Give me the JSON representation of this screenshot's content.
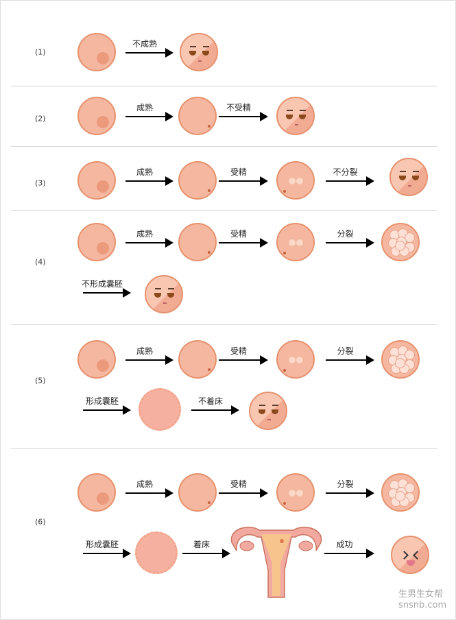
{
  "rows": [
    {
      "num": "(1)",
      "labels": [
        "不成熟"
      ]
    },
    {
      "num": "(2)",
      "labels": [
        "成熟",
        "不受精"
      ]
    },
    {
      "num": "(3)",
      "labels": [
        "成熟",
        "受精",
        "不分裂"
      ]
    },
    {
      "num": "(4)",
      "labels": [
        "成熟",
        "受精",
        "分裂",
        "不形成囊胚"
      ]
    },
    {
      "num": "(5)",
      "labels": [
        "成熟",
        "受精",
        "分裂",
        "形成囊胚",
        "不着床"
      ]
    },
    {
      "num": "(6)",
      "labels": [
        "成熟",
        "受精",
        "分裂",
        "形成囊胚",
        "着床",
        "成功"
      ]
    }
  ],
  "watermark": {
    "cn": "生男生女帮",
    "url": "snsnb.com"
  }
}
